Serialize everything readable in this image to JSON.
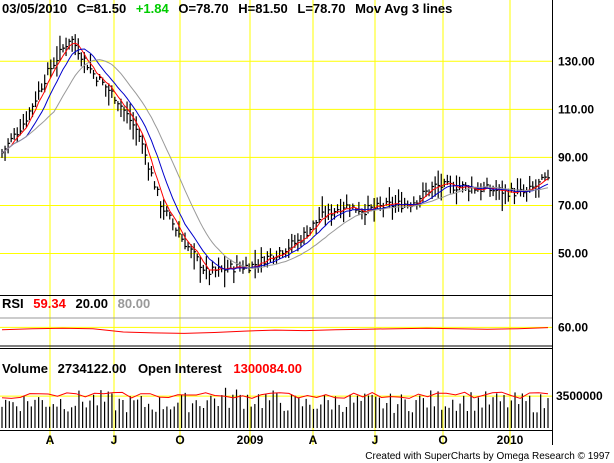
{
  "header": {
    "date": "03/05/2010",
    "close_label": "C=81.50",
    "change_label": "+1.84",
    "open_label": "O=78.70",
    "high_label": "H=81.50",
    "low_label": "L=78.70",
    "study_label": "Mov Avg 3 lines"
  },
  "rsi_header": {
    "name": "RSI",
    "value": "59.34",
    "lower": "20.00",
    "upper": "80.00"
  },
  "volume_header": {
    "name": "Volume",
    "value": "2734122.00",
    "oi_name": "Open Interest",
    "oi_value": "1300084.00"
  },
  "credit": "Created with SuperCharts by Omega Research © 1997",
  "colors": {
    "grid": "#ffff00",
    "bars": "#000000",
    "ma_fast": "#ff0000",
    "ma_mid": "#0000cc",
    "ma_slow": "#999999",
    "up": "#00cc00",
    "rsi_upper": "#999999"
  },
  "chart_data": [
    {
      "type": "line",
      "title": "Price with Mov Avg 3 lines",
      "x_ticks": [
        "A",
        "J",
        "O",
        "2009",
        "A",
        "J",
        "O",
        "2010"
      ],
      "y_ticks": [
        "130.00",
        "110.00",
        "90.00",
        "70.00",
        "50.00"
      ],
      "ylim": [
        34,
        148
      ],
      "grid": true,
      "series": [
        {
          "name": "Close",
          "x": [
            "2008-03",
            "2008-04",
            "2008-05",
            "2008-06",
            "2008-07",
            "2008-08",
            "2008-09",
            "2008-10",
            "2008-11",
            "2008-12",
            "2009-01",
            "2009-02",
            "2009-03",
            "2009-04",
            "2009-05",
            "2009-06",
            "2009-07",
            "2009-08",
            "2009-09",
            "2009-10",
            "2009-11",
            "2009-12",
            "2010-01",
            "2010-02",
            "2010-03"
          ],
          "values": [
            92,
            105,
            125,
            140,
            125,
            115,
            100,
            70,
            55,
            42,
            44,
            45,
            50,
            55,
            65,
            70,
            68,
            70,
            71,
            78,
            78,
            77,
            76,
            75,
            81.5
          ]
        }
      ]
    },
    {
      "type": "line",
      "title": "RSI",
      "y_ticks": [
        "60.00"
      ],
      "ylim": [
        20,
        80
      ],
      "series": [
        {
          "name": "RSI",
          "values": [
            55,
            57,
            58,
            57,
            50,
            48,
            47,
            49,
            52,
            54,
            53,
            55,
            56,
            57,
            58,
            57,
            56,
            57,
            59.34
          ]
        }
      ]
    },
    {
      "type": "bar",
      "title": "Volume",
      "y_ticks": [
        "3500000"
      ],
      "ylim": [
        0,
        5500000
      ],
      "series": [
        {
          "name": "Volume",
          "values": [
            2800000,
            3000000,
            2900000,
            3100000,
            2700000,
            2600000,
            2800000,
            3200000,
            3400000,
            3000000,
            2600000,
            2900000,
            2800000,
            2700000,
            3000000,
            3100000,
            2900000,
            2800000,
            2734122
          ]
        }
      ]
    }
  ]
}
